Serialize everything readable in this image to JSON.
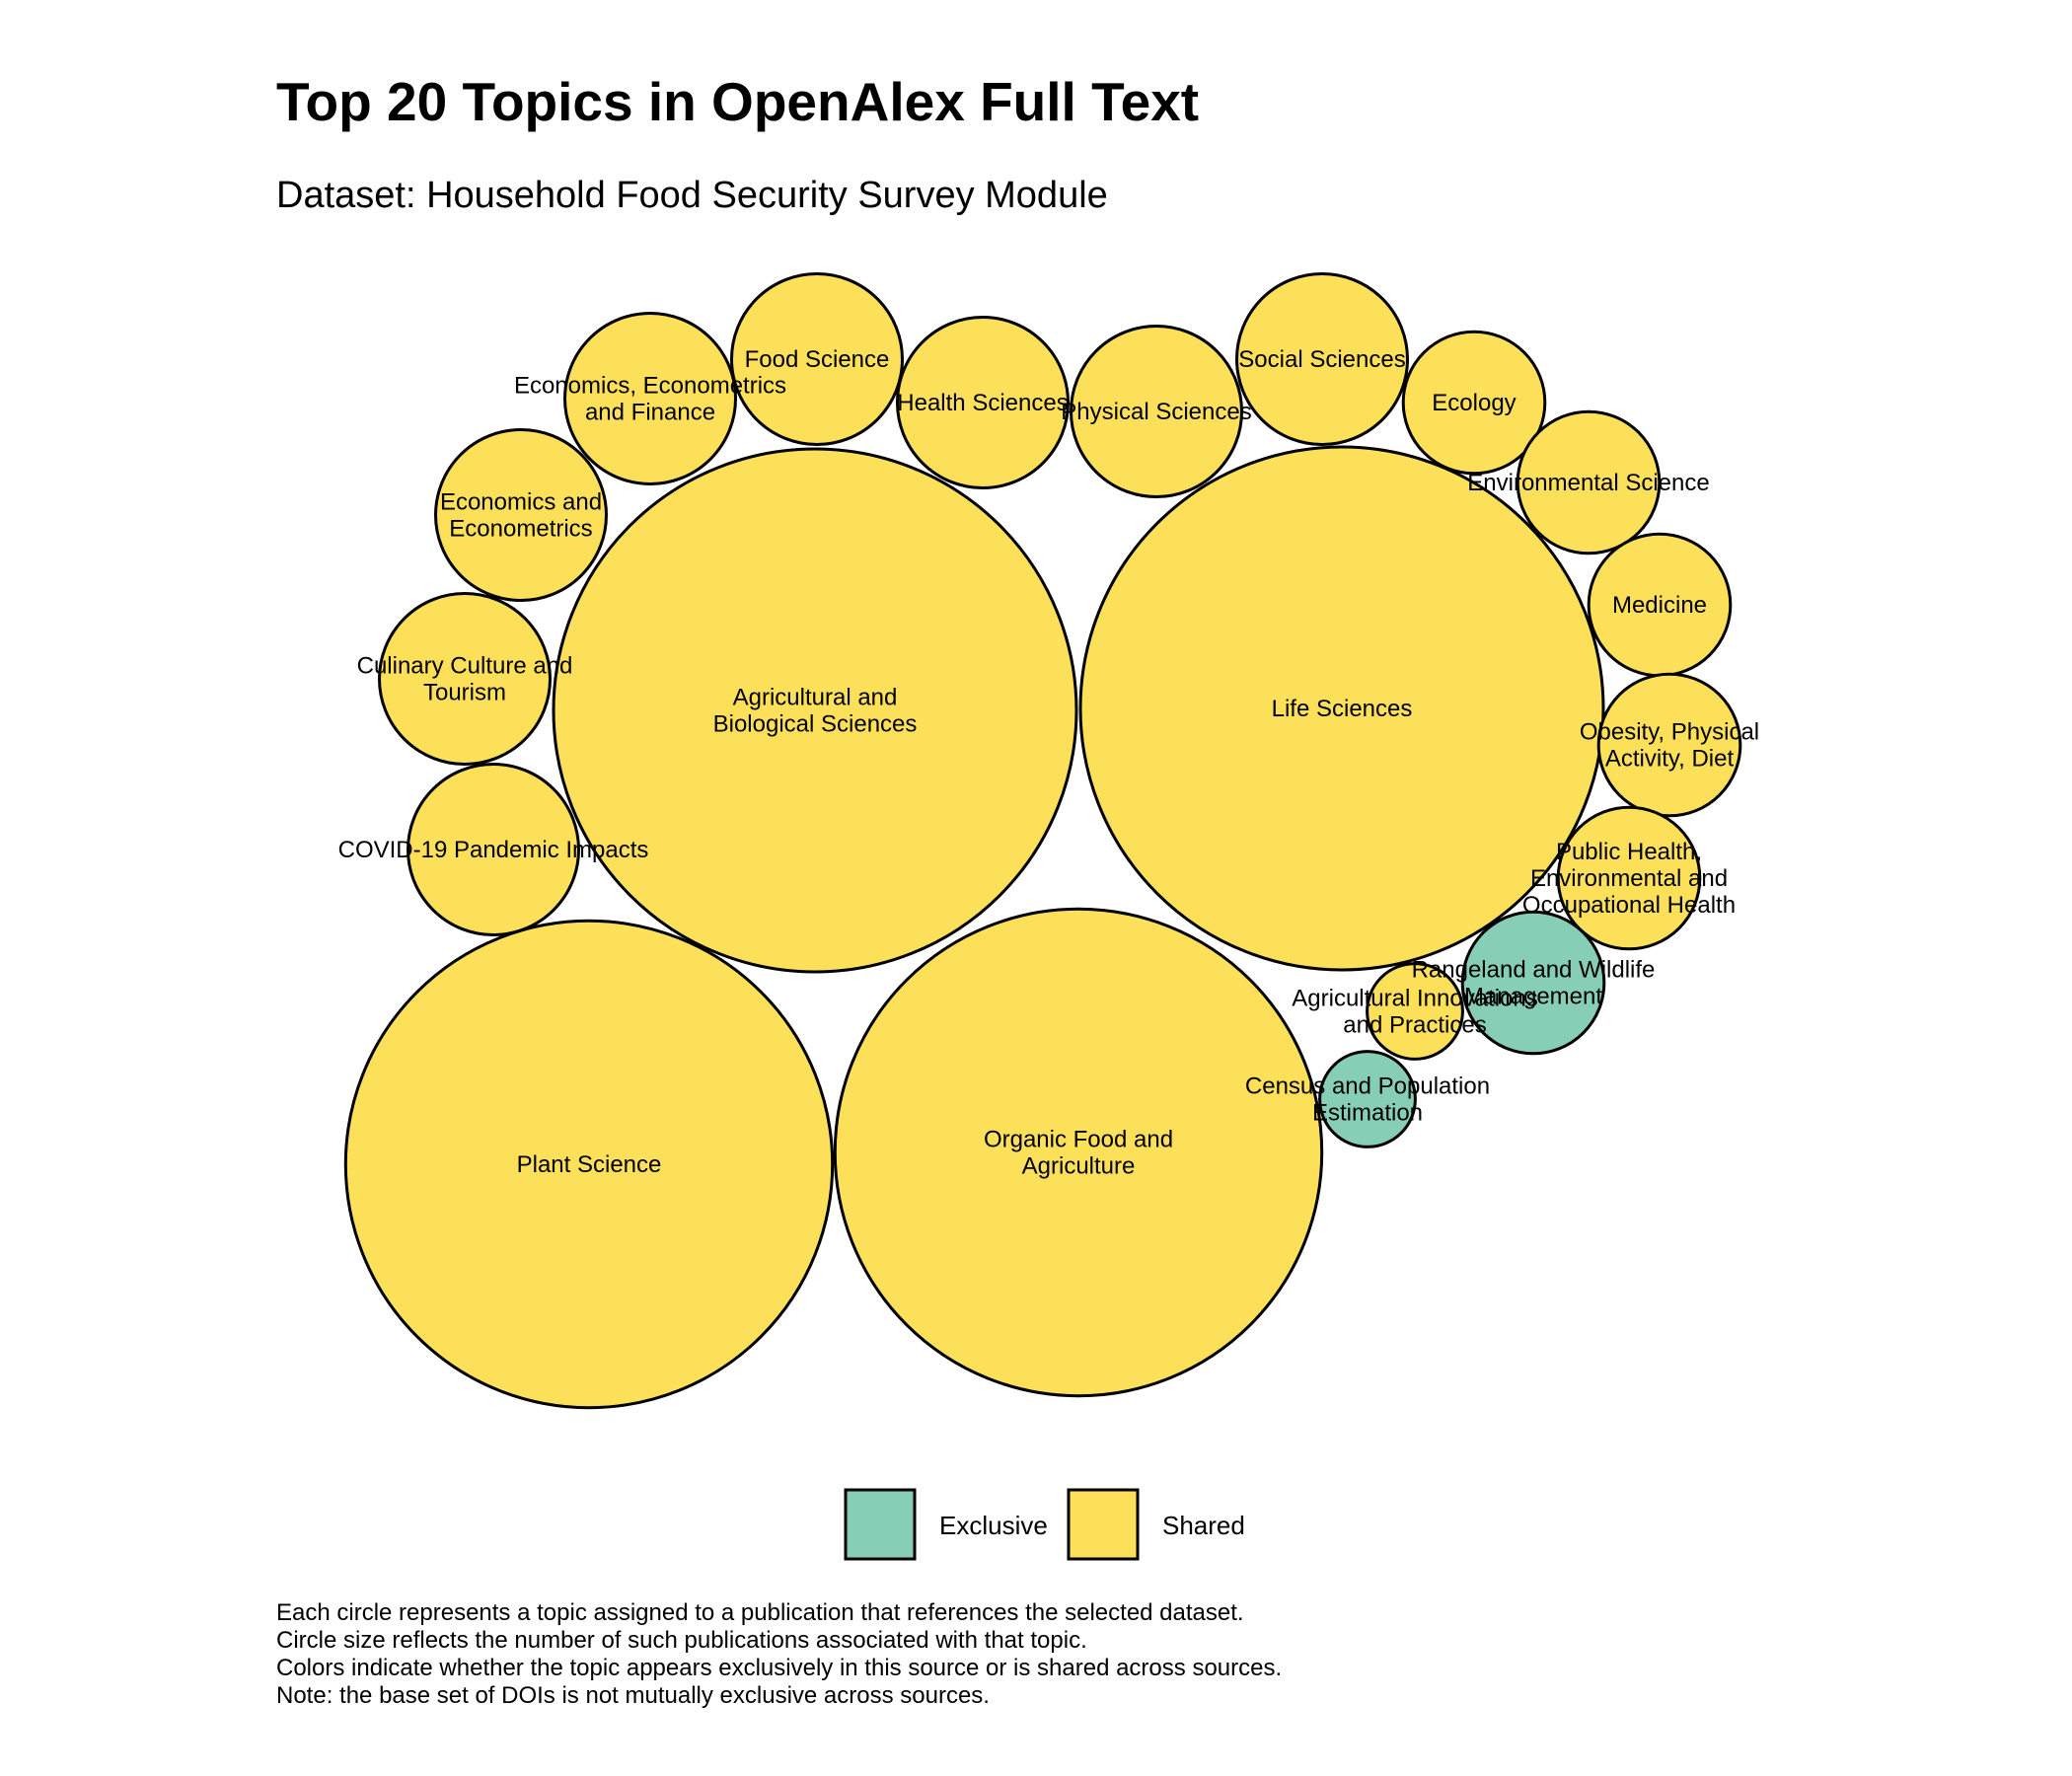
{
  "chart_data": {
    "type": "bubble-pack",
    "title": "Top 20 Topics in OpenAlex Full Text",
    "subtitle": "Dataset: Household Food Security Survey Module",
    "colors": {
      "Exclusive": "#86cfb6",
      "Shared": "#fde05a",
      "stroke": "#000000"
    },
    "legend": {
      "position": "bottom",
      "items": [
        "Exclusive",
        "Shared"
      ]
    },
    "topics": [
      {
        "name": "Agricultural and Biological Sciences",
        "lines": [
          "Agricultural and",
          "Biological Sciences"
        ],
        "value": 150,
        "group": "Shared"
      },
      {
        "name": "Life Sciences",
        "lines": [
          "Life Sciences"
        ],
        "value": 150,
        "group": "Shared"
      },
      {
        "name": "Plant Science",
        "lines": [
          "Plant Science"
        ],
        "value": 130,
        "group": "Shared"
      },
      {
        "name": "Organic Food and Agriculture",
        "lines": [
          "Organic Food and",
          "Agriculture"
        ],
        "value": 130,
        "group": "Shared"
      },
      {
        "name": "Food Science",
        "lines": [
          "Food Science"
        ],
        "value": 16,
        "group": "Shared"
      },
      {
        "name": "Social Sciences",
        "lines": [
          "Social Sciences"
        ],
        "value": 16,
        "group": "Shared"
      },
      {
        "name": "Health Sciences",
        "lines": [
          "Health Sciences"
        ],
        "value": 16,
        "group": "Shared"
      },
      {
        "name": "Physical Sciences",
        "lines": [
          "Physical Sciences"
        ],
        "value": 16,
        "group": "Shared"
      },
      {
        "name": "Economics, Econometrics and Finance",
        "lines": [
          "Economics, Econometrics",
          "and Finance"
        ],
        "value": 16,
        "group": "Shared"
      },
      {
        "name": "Economics and Econometrics",
        "lines": [
          "Economics and",
          "Econometrics"
        ],
        "value": 16,
        "group": "Shared"
      },
      {
        "name": "Culinary Culture and Tourism",
        "lines": [
          "Culinary Culture and",
          "Tourism"
        ],
        "value": 16,
        "group": "Shared"
      },
      {
        "name": "COVID-19 Pandemic Impacts",
        "lines": [
          "COVID-19 Pandemic Impacts"
        ],
        "value": 16,
        "group": "Shared"
      },
      {
        "name": "Ecology",
        "lines": [
          "Ecology"
        ],
        "value": 11,
        "group": "Shared"
      },
      {
        "name": "Environmental Science",
        "lines": [
          "Environmental Science"
        ],
        "value": 11,
        "group": "Shared"
      },
      {
        "name": "Medicine",
        "lines": [
          "Medicine"
        ],
        "value": 11,
        "group": "Shared"
      },
      {
        "name": "Obesity, Physical Activity, Diet",
        "lines": [
          "Obesity, Physical",
          "Activity, Diet"
        ],
        "value": 11,
        "group": "Shared"
      },
      {
        "name": "Public Health, Environmental and Occupational Health",
        "lines": [
          "Public Health,",
          "Environmental and",
          "Occupational Health"
        ],
        "value": 11,
        "group": "Shared"
      },
      {
        "name": "Rangeland and Wildlife Management",
        "lines": [
          "Rangeland and Wildlife",
          "Management"
        ],
        "value": 11,
        "group": "Exclusive"
      },
      {
        "name": "Agricultural Innovations and Practices",
        "lines": [
          "Agricultural Innovations",
          "and Practices"
        ],
        "value": 5,
        "group": "Shared"
      },
      {
        "name": "Census and Population Estimation",
        "lines": [
          "Census and Population",
          "Estimation"
        ],
        "value": 5,
        "group": "Exclusive"
      }
    ]
  },
  "caption": [
    "Each circle represents a topic assigned to a publication that references the selected dataset.",
    "Circle size reflects the number of such publications associated with that topic.",
    "Colors indicate whether the topic appears exclusively in this source or is shared across sources.",
    "Note: the base set of DOIs is not mutually exclusive across sources."
  ]
}
